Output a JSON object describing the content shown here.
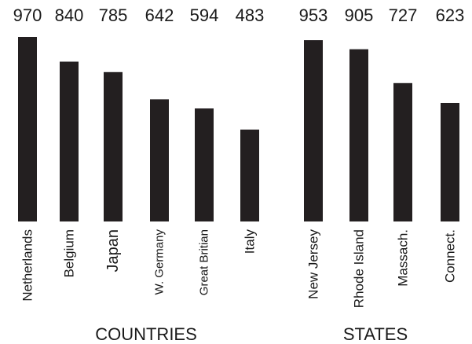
{
  "chart_data": [
    {
      "type": "bar",
      "title": "",
      "group_label": "COUNTRIES",
      "categories": [
        "Netherlands",
        "Belgium",
        "Japan",
        "W. Germany",
        "Great Britian",
        "Italy"
      ],
      "values": [
        970,
        840,
        785,
        642,
        594,
        483
      ],
      "ylim": [
        0,
        1000
      ],
      "grid": false,
      "bar_color": "#231f20"
    },
    {
      "type": "bar",
      "title": "",
      "group_label": "STATES",
      "categories": [
        "New Jersey",
        "Rhode Island",
        "Massach.",
        "Connect."
      ],
      "values": [
        953,
        905,
        727,
        623
      ],
      "ylim": [
        0,
        1000
      ],
      "grid": false,
      "bar_color": "#231f20"
    }
  ]
}
